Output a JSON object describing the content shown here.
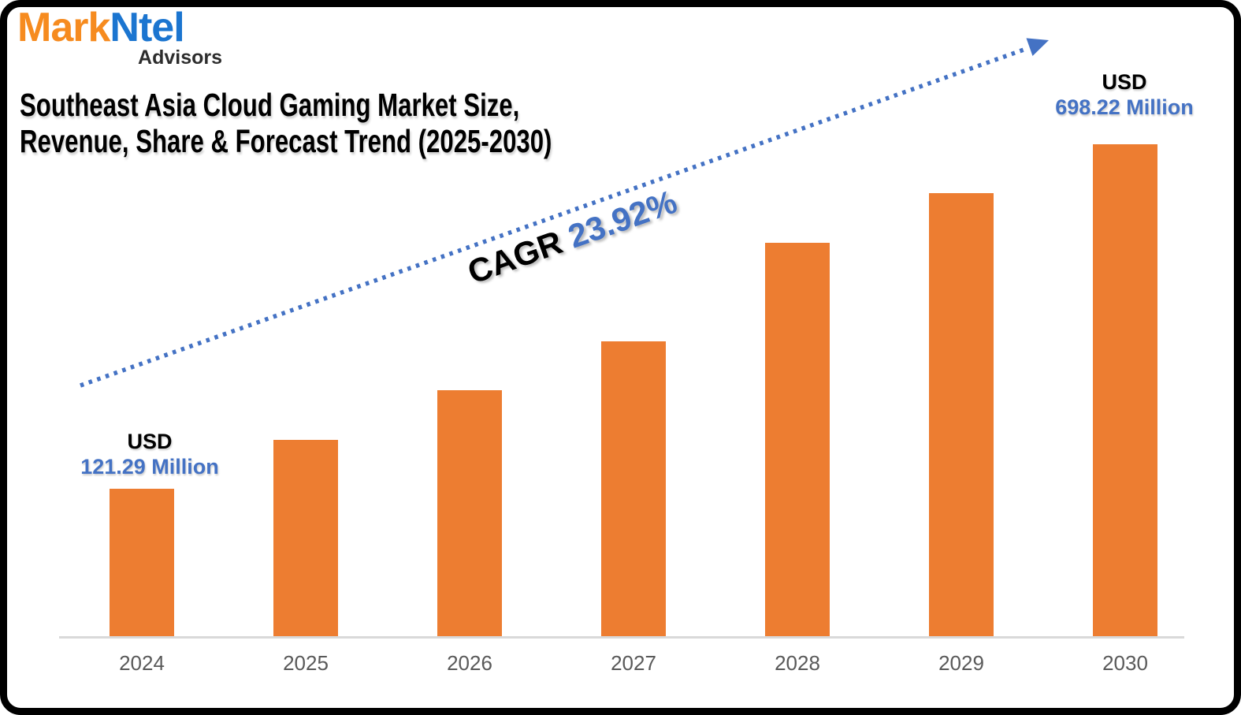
{
  "brand": {
    "name_part1": "Mark",
    "name_part2": "Ntel",
    "subtitle": "Advisors",
    "color_part1": "#F68B1F",
    "color_part2": "#1B75D0"
  },
  "title": {
    "line1": "Southeast Asia Cloud Gaming Market Size,",
    "line2": "Revenue, Share & Forecast Trend (2025-2030)"
  },
  "trend": {
    "cagr_prefix": "CAGR",
    "cagr_value": "23.92%",
    "arrow_color": "#4472C4"
  },
  "data_labels": {
    "start": {
      "line1": "USD",
      "line2": "121.29 Million",
      "year": "2024"
    },
    "end": {
      "line1": "USD",
      "line2": "698.22 Million",
      "year": "2030"
    },
    "value_color": "#4472C4"
  },
  "colors": {
    "bar": "#ED7D31",
    "accent_blue": "#4472C4",
    "axis_line": "#D9D9D9",
    "tick_text": "#595959"
  },
  "chart_data": {
    "type": "bar",
    "title": "Southeast Asia Cloud Gaming Market Size, Revenue, Share & Forecast Trend (2025-2030)",
    "unit": "USD Million",
    "categories": [
      "2024",
      "2025",
      "2026",
      "2027",
      "2028",
      "2029",
      "2030"
    ],
    "series": [
      {
        "name": "Southeast Asia Cloud Gaming Market Size (USD Million)",
        "values": [
          121.29,
          null,
          null,
          null,
          null,
          null,
          698.22
        ],
        "labeled_points": {
          "2024": "USD 121.29 Million",
          "2030": "USD 698.22 Million"
        }
      }
    ],
    "bar_heights_relative": [
      0.3,
      0.4,
      0.5,
      0.6,
      0.8,
      0.9,
      1.0
    ],
    "bar_color": "#ED7D31",
    "cagr_percent": 23.92,
    "annotations": [
      {
        "type": "trend_arrow",
        "label": "CAGR 23.92%"
      }
    ],
    "grid": "off",
    "legend": "none",
    "xlabel": "",
    "ylabel": ""
  }
}
